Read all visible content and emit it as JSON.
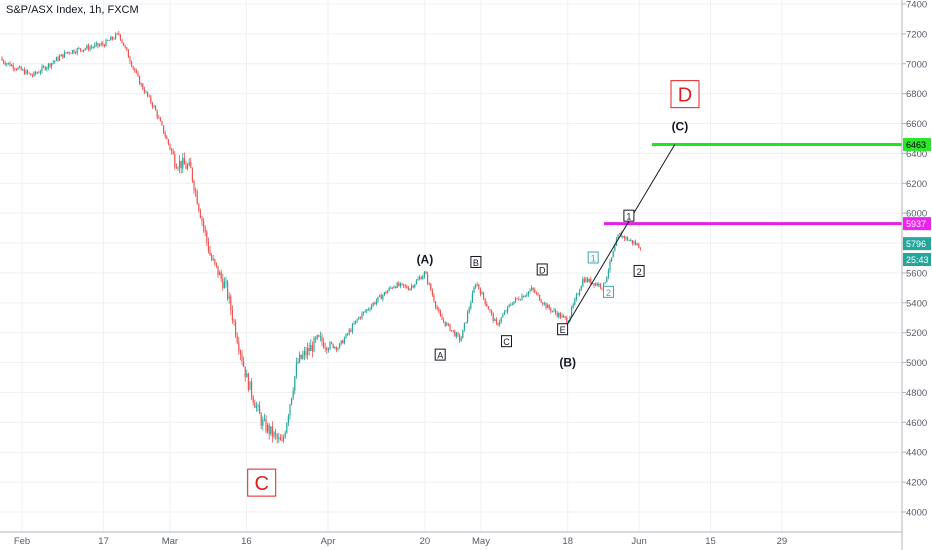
{
  "header": {
    "title": "S&P/ASX Index, 1h, FXCM"
  },
  "price_tags": [
    {
      "label": "6463",
      "value": 6460,
      "color": "#2ee52e",
      "text_color": "#000000"
    },
    {
      "label": "5937",
      "value": 5930,
      "color": "#ee22ee",
      "text_color": "#ffffff"
    },
    {
      "label": "5796",
      "value": 5796,
      "color": "#26a69a",
      "text_color": "#ffffff"
    },
    {
      "label": "25:43",
      "value": 5690,
      "color": "#26a69a",
      "text_color": "#ffffff"
    }
  ],
  "colors": {
    "up": "#26a69a",
    "down": "#ef5350",
    "green_line": "#1ee61e",
    "magenta_line": "#e61ee6",
    "red_box": "#e02020",
    "cyan_label": "#3aa8b8"
  },
  "chart_data": {
    "type": "line",
    "title": "S&P/ASX Index, 1h, FXCM",
    "x_ticks": [
      "Feb",
      "17",
      "Mar",
      "16",
      "Apr",
      "20",
      "May",
      "18",
      "Jun",
      "15",
      "29"
    ],
    "y_ticks": [
      "4000",
      "4200",
      "4400",
      "4600",
      "4800",
      "5000",
      "5200",
      "5400",
      "5600",
      "5800",
      "6000",
      "6200",
      "6400",
      "6600",
      "6800",
      "7000",
      "7200",
      "7400"
    ],
    "ylim": [
      3850,
      7420
    ],
    "x": [
      "Jan 27",
      "Feb 3",
      "Feb 10",
      "Feb 17",
      "Feb 20",
      "Feb 24",
      "Feb 27",
      "Mar 2",
      "Mar 5",
      "Mar 9",
      "Mar 12",
      "Mar 16",
      "Mar 19",
      "Mar 23",
      "Mar 26",
      "Mar 30",
      "Apr 3",
      "Apr 7",
      "Apr 10",
      "Apr 14",
      "Apr 17",
      "Apr 20",
      "Apr 23",
      "Apr 27",
      "Apr 30",
      "May 4",
      "May 7",
      "May 11",
      "May 14",
      "May 18",
      "May 21",
      "May 25",
      "May 28",
      "Jun 1"
    ],
    "values": [
      7040,
      6920,
      7080,
      7130,
      7200,
      6880,
      6700,
      6350,
      6300,
      5700,
      5500,
      4900,
      4600,
      4450,
      5000,
      5150,
      5100,
      5300,
      5400,
      5520,
      5500,
      5600,
      5300,
      5150,
      5540,
      5250,
      5400,
      5490,
      5370,
      5280,
      5560,
      5510,
      5860,
      5780
    ],
    "series": [
      {
        "values": [
          7040,
          6920,
          7080,
          7130,
          7200,
          6880,
          6700,
          6350,
          6300,
          5700,
          5500,
          4900,
          4600,
          4450,
          5000,
          5150,
          5100,
          5300,
          5400,
          5520,
          5500,
          5600,
          5300,
          5150,
          5540,
          5250,
          5400,
          5490,
          5370,
          5280,
          5560,
          5510,
          5860,
          5780
        ]
      }
    ],
    "horizontal_lines": [
      {
        "value": 6460
      },
      {
        "value": 5930
      }
    ],
    "trend_line": {
      "from": [
        "May 18",
        5260
      ],
      "to": [
        "Jun 8",
        6460
      ]
    },
    "annotations": {
      "big_boxes": [
        {
          "text": "C",
          "x": "Mar 19",
          "y": 4200
        },
        {
          "text": "D",
          "x": "Jun 10",
          "y": 6800
        }
      ],
      "bold_labels": [
        {
          "text": "(A)",
          "x": "Apr 20",
          "y": 5690
        },
        {
          "text": "(B)",
          "x": "May 18",
          "y": 5000
        },
        {
          "text": "(C)",
          "x": "Jun 9",
          "y": 6580
        }
      ],
      "boxed_labels": [
        {
          "text": "A",
          "x": "Apr 23",
          "y": 5050,
          "style": "black"
        },
        {
          "text": "B",
          "x": "Apr 30",
          "y": 5670,
          "style": "black"
        },
        {
          "text": "C",
          "x": "May 6",
          "y": 5140,
          "style": "black"
        },
        {
          "text": "D",
          "x": "May 13",
          "y": 5620,
          "style": "black"
        },
        {
          "text": "E",
          "x": "May 17",
          "y": 5220,
          "style": "black"
        },
        {
          "text": "1",
          "x": "May 23",
          "y": 5700,
          "style": "cyan"
        },
        {
          "text": "2",
          "x": "May 26",
          "y": 5470,
          "style": "cyan"
        },
        {
          "text": "1",
          "x": "May 30",
          "y": 5980,
          "style": "black"
        },
        {
          "text": "2",
          "x": "Jun 1",
          "y": 5610,
          "style": "black"
        }
      ]
    }
  }
}
